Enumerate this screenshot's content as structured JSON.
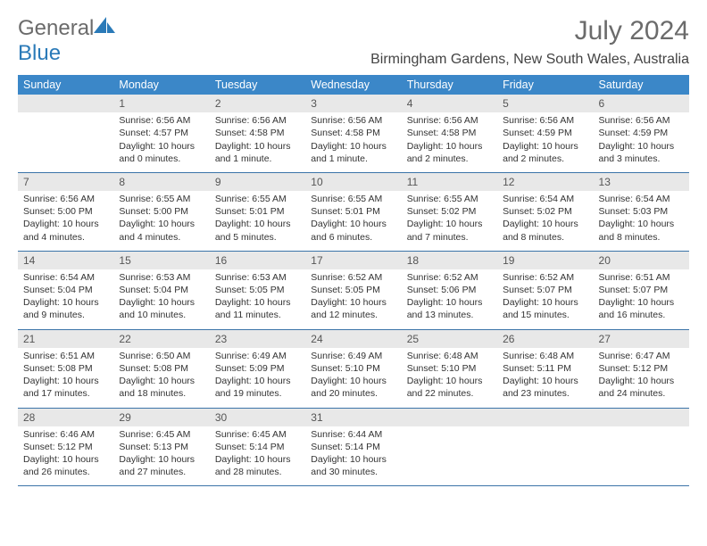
{
  "logo": {
    "word1": "General",
    "word2": "Blue"
  },
  "title": "July 2024",
  "location": "Birmingham Gardens, New South Wales, Australia",
  "dayHeaders": [
    "Sunday",
    "Monday",
    "Tuesday",
    "Wednesday",
    "Thursday",
    "Friday",
    "Saturday"
  ],
  "colors": {
    "headerBg": "#3b87c8",
    "headerFg": "#ffffff",
    "dayNumBg": "#e8e8e8",
    "rowBorder": "#3b74a8",
    "titleColor": "#6b6b6b",
    "logoBlue": "#2a7ab8"
  },
  "typography": {
    "titleFontSize": 30,
    "locationFontSize": 16,
    "headerFontSize": 12.5,
    "cellFontSize": 10.5,
    "dayNumFontSize": 12
  },
  "startWeekday": 1,
  "daysInMonth": 31,
  "days": {
    "1": {
      "sunrise": "6:56 AM",
      "sunset": "4:57 PM",
      "daylight": "10 hours and 0 minutes."
    },
    "2": {
      "sunrise": "6:56 AM",
      "sunset": "4:58 PM",
      "daylight": "10 hours and 1 minute."
    },
    "3": {
      "sunrise": "6:56 AM",
      "sunset": "4:58 PM",
      "daylight": "10 hours and 1 minute."
    },
    "4": {
      "sunrise": "6:56 AM",
      "sunset": "4:58 PM",
      "daylight": "10 hours and 2 minutes."
    },
    "5": {
      "sunrise": "6:56 AM",
      "sunset": "4:59 PM",
      "daylight": "10 hours and 2 minutes."
    },
    "6": {
      "sunrise": "6:56 AM",
      "sunset": "4:59 PM",
      "daylight": "10 hours and 3 minutes."
    },
    "7": {
      "sunrise": "6:56 AM",
      "sunset": "5:00 PM",
      "daylight": "10 hours and 4 minutes."
    },
    "8": {
      "sunrise": "6:55 AM",
      "sunset": "5:00 PM",
      "daylight": "10 hours and 4 minutes."
    },
    "9": {
      "sunrise": "6:55 AM",
      "sunset": "5:01 PM",
      "daylight": "10 hours and 5 minutes."
    },
    "10": {
      "sunrise": "6:55 AM",
      "sunset": "5:01 PM",
      "daylight": "10 hours and 6 minutes."
    },
    "11": {
      "sunrise": "6:55 AM",
      "sunset": "5:02 PM",
      "daylight": "10 hours and 7 minutes."
    },
    "12": {
      "sunrise": "6:54 AM",
      "sunset": "5:02 PM",
      "daylight": "10 hours and 8 minutes."
    },
    "13": {
      "sunrise": "6:54 AM",
      "sunset": "5:03 PM",
      "daylight": "10 hours and 8 minutes."
    },
    "14": {
      "sunrise": "6:54 AM",
      "sunset": "5:04 PM",
      "daylight": "10 hours and 9 minutes."
    },
    "15": {
      "sunrise": "6:53 AM",
      "sunset": "5:04 PM",
      "daylight": "10 hours and 10 minutes."
    },
    "16": {
      "sunrise": "6:53 AM",
      "sunset": "5:05 PM",
      "daylight": "10 hours and 11 minutes."
    },
    "17": {
      "sunrise": "6:52 AM",
      "sunset": "5:05 PM",
      "daylight": "10 hours and 12 minutes."
    },
    "18": {
      "sunrise": "6:52 AM",
      "sunset": "5:06 PM",
      "daylight": "10 hours and 13 minutes."
    },
    "19": {
      "sunrise": "6:52 AM",
      "sunset": "5:07 PM",
      "daylight": "10 hours and 15 minutes."
    },
    "20": {
      "sunrise": "6:51 AM",
      "sunset": "5:07 PM",
      "daylight": "10 hours and 16 minutes."
    },
    "21": {
      "sunrise": "6:51 AM",
      "sunset": "5:08 PM",
      "daylight": "10 hours and 17 minutes."
    },
    "22": {
      "sunrise": "6:50 AM",
      "sunset": "5:08 PM",
      "daylight": "10 hours and 18 minutes."
    },
    "23": {
      "sunrise": "6:49 AM",
      "sunset": "5:09 PM",
      "daylight": "10 hours and 19 minutes."
    },
    "24": {
      "sunrise": "6:49 AM",
      "sunset": "5:10 PM",
      "daylight": "10 hours and 20 minutes."
    },
    "25": {
      "sunrise": "6:48 AM",
      "sunset": "5:10 PM",
      "daylight": "10 hours and 22 minutes."
    },
    "26": {
      "sunrise": "6:48 AM",
      "sunset": "5:11 PM",
      "daylight": "10 hours and 23 minutes."
    },
    "27": {
      "sunrise": "6:47 AM",
      "sunset": "5:12 PM",
      "daylight": "10 hours and 24 minutes."
    },
    "28": {
      "sunrise": "6:46 AM",
      "sunset": "5:12 PM",
      "daylight": "10 hours and 26 minutes."
    },
    "29": {
      "sunrise": "6:45 AM",
      "sunset": "5:13 PM",
      "daylight": "10 hours and 27 minutes."
    },
    "30": {
      "sunrise": "6:45 AM",
      "sunset": "5:14 PM",
      "daylight": "10 hours and 28 minutes."
    },
    "31": {
      "sunrise": "6:44 AM",
      "sunset": "5:14 PM",
      "daylight": "10 hours and 30 minutes."
    }
  },
  "labels": {
    "sunrise": "Sunrise:",
    "sunset": "Sunset:",
    "daylight": "Daylight:"
  }
}
